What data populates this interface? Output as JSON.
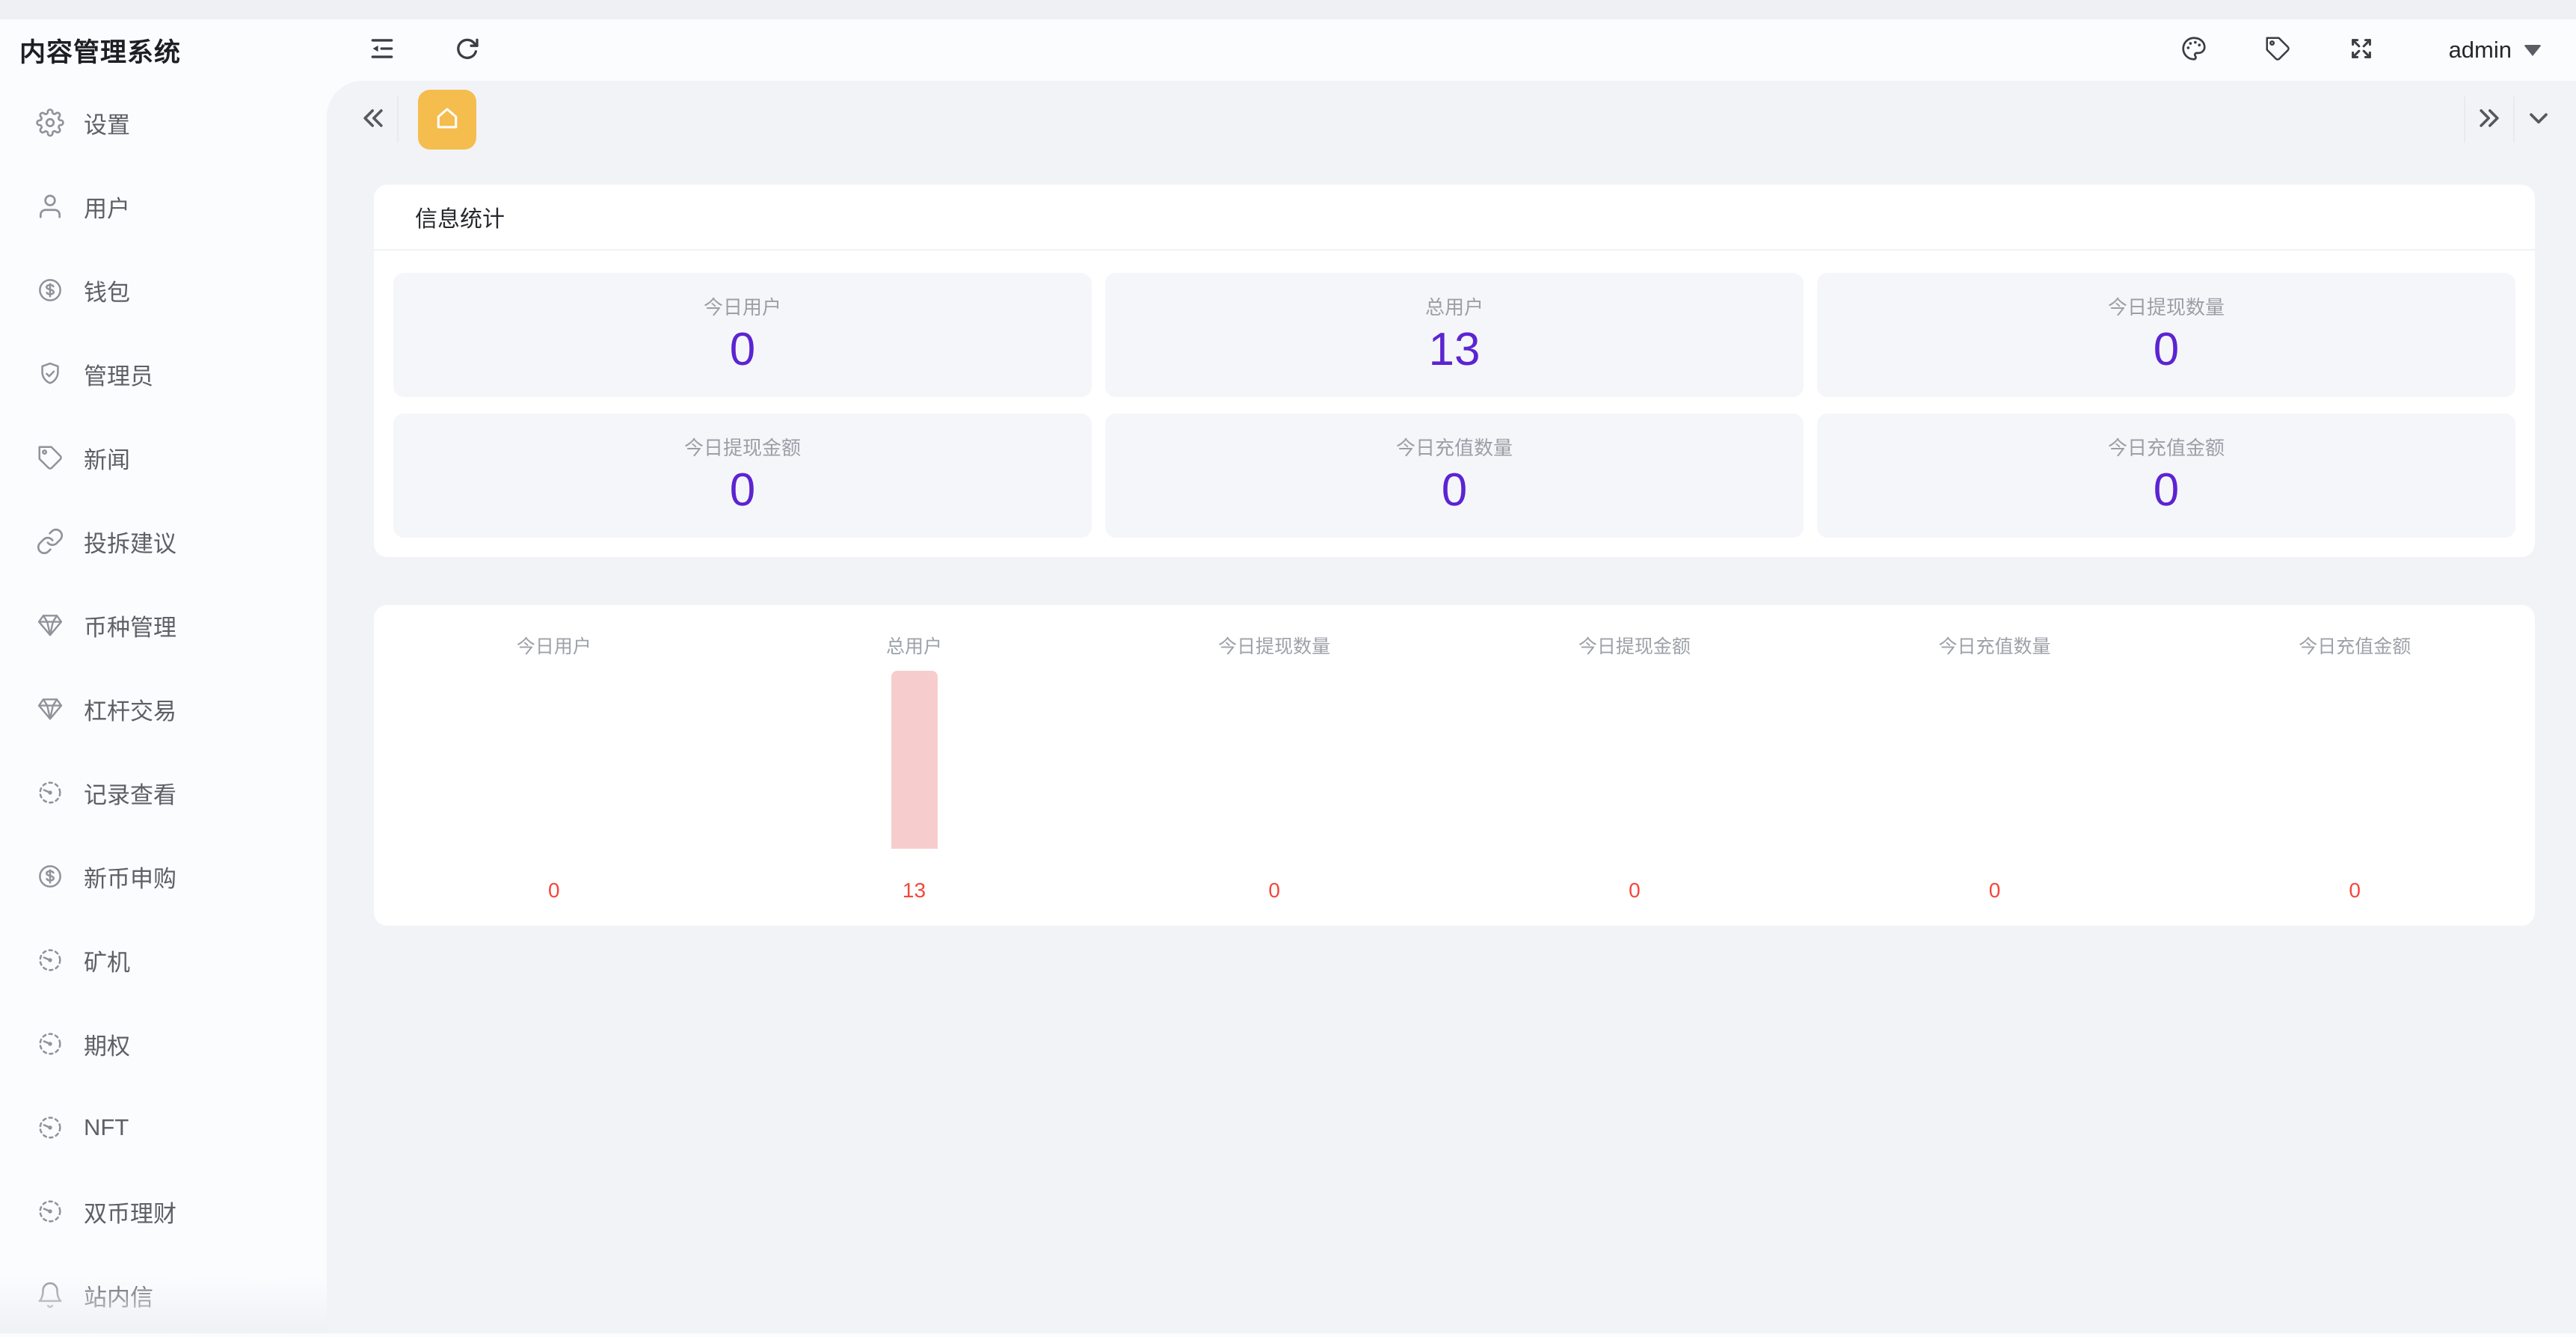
{
  "app": {
    "title": "内容管理系统"
  },
  "header": {
    "user": {
      "name": "admin"
    }
  },
  "sidebar": {
    "items": [
      {
        "label": "设置",
        "icon": "gear"
      },
      {
        "label": "用户",
        "icon": "user"
      },
      {
        "label": "钱包",
        "icon": "coin"
      },
      {
        "label": "管理员",
        "icon": "shield-check"
      },
      {
        "label": "新闻",
        "icon": "tag"
      },
      {
        "label": "投拆建议",
        "icon": "link"
      },
      {
        "label": "币种管理",
        "icon": "diamond"
      },
      {
        "label": "杠杆交易",
        "icon": "diamond"
      },
      {
        "label": "记录查看",
        "icon": "gauge"
      },
      {
        "label": "新币申购",
        "icon": "coin"
      },
      {
        "label": "矿机",
        "icon": "gauge"
      },
      {
        "label": "期权",
        "icon": "gauge"
      },
      {
        "label": "NFT",
        "icon": "gauge"
      },
      {
        "label": "双币理财",
        "icon": "gauge"
      },
      {
        "label": "站内信",
        "icon": "bell"
      }
    ]
  },
  "stats": {
    "title": "信息统计",
    "items": [
      {
        "label": "今日用户",
        "value": "0"
      },
      {
        "label": "总用户",
        "value": "13"
      },
      {
        "label": "今日提现数量",
        "value": "0"
      },
      {
        "label": "今日提现金额",
        "value": "0"
      },
      {
        "label": "今日充值数量",
        "value": "0"
      },
      {
        "label": "今日充值金额",
        "value": "0"
      }
    ]
  },
  "chart_data": {
    "type": "bar",
    "categories": [
      "今日用户",
      "总用户",
      "今日提现数量",
      "今日提现金额",
      "今日充值数量",
      "今日充值金额"
    ],
    "values": [
      0,
      13,
      0,
      0,
      0,
      0
    ],
    "value_labels": [
      "0",
      "13",
      "0",
      "0",
      "0",
      "0"
    ],
    "ymax": 13,
    "bar_color": "#f6cdcc",
    "value_color": "#f4473d",
    "title": "",
    "xlabel": "",
    "ylabel": "",
    "grid": false,
    "legend": false
  },
  "colors": {
    "accent_yellow": "#f5bd4e",
    "value_purple": "#5c24d2",
    "chart_red": "#f4473d",
    "bar_pink": "#f6cdcc"
  }
}
